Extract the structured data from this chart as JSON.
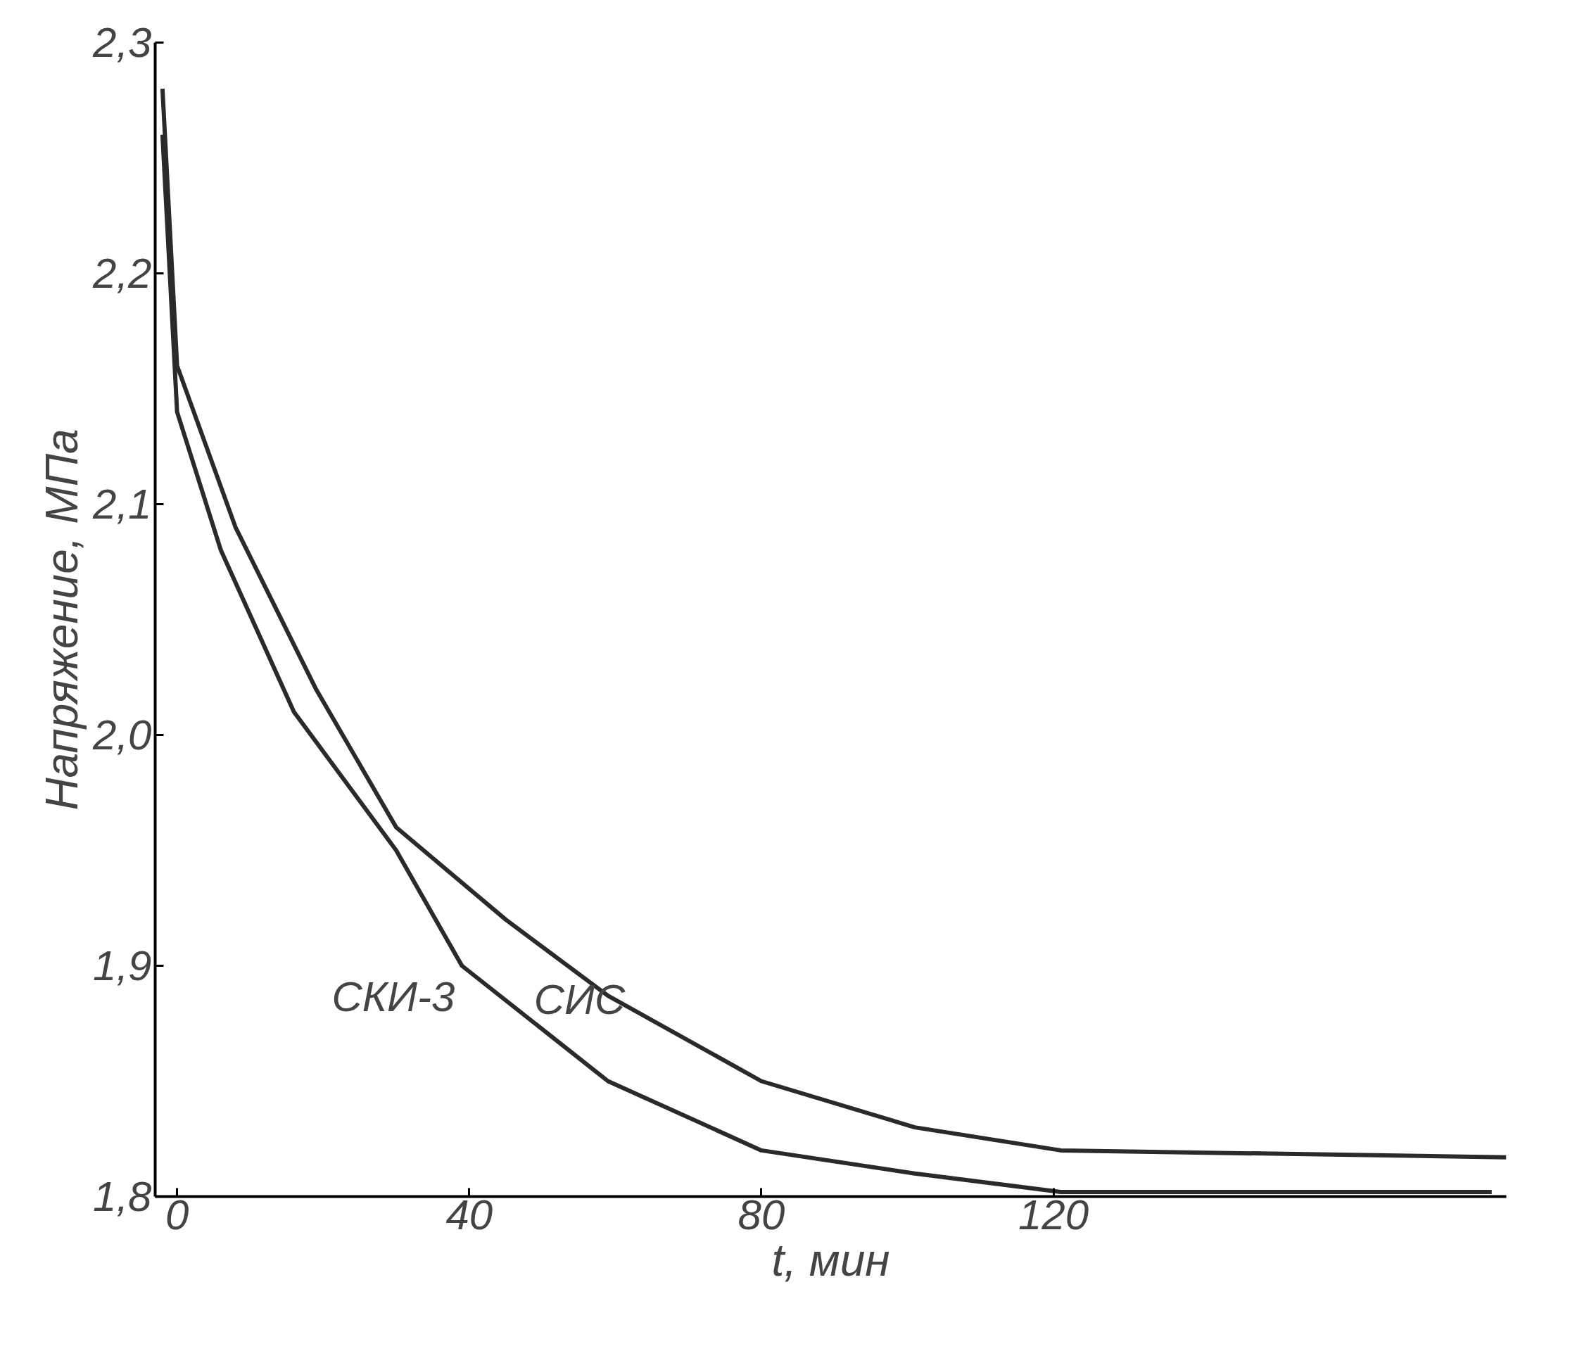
{
  "chart_data": {
    "type": "line",
    "xlabel": "t, мин",
    "ylabel": "Напряжение, МПа",
    "xlim": [
      -3,
      182
    ],
    "ylim": [
      1.8,
      2.3
    ],
    "xticks": [
      0,
      40,
      80,
      120
    ],
    "yticks": [
      {
        "value": 1.8,
        "label": "1,8"
      },
      {
        "value": 1.9,
        "label": "1,9"
      },
      {
        "value": 2.0,
        "label": "2,0"
      },
      {
        "value": 2.1,
        "label": "2,1"
      },
      {
        "value": 2.2,
        "label": "2,2"
      },
      {
        "value": 2.3,
        "label": "2,3"
      }
    ],
    "grid": false,
    "legend": false,
    "marker": "none",
    "line_style": "solid",
    "series": [
      {
        "name": "СКИ-3",
        "color": "#2a2a2a",
        "x": [
          -2,
          0,
          6,
          16,
          30,
          39,
          59,
          80,
          101,
          121,
          180
        ],
        "values": [
          2.26,
          2.14,
          2.08,
          2.01,
          1.95,
          1.9,
          1.85,
          1.82,
          1.81,
          1.802,
          1.802
        ]
      },
      {
        "name": "СИС",
        "color": "#2a2a2a",
        "x": [
          -2,
          0,
          8,
          19,
          30,
          45,
          59,
          80,
          101,
          121,
          182
        ],
        "values": [
          2.28,
          2.16,
          2.09,
          2.02,
          1.96,
          1.92,
          1.887,
          1.85,
          1.83,
          1.82,
          1.817
        ]
      }
    ]
  }
}
